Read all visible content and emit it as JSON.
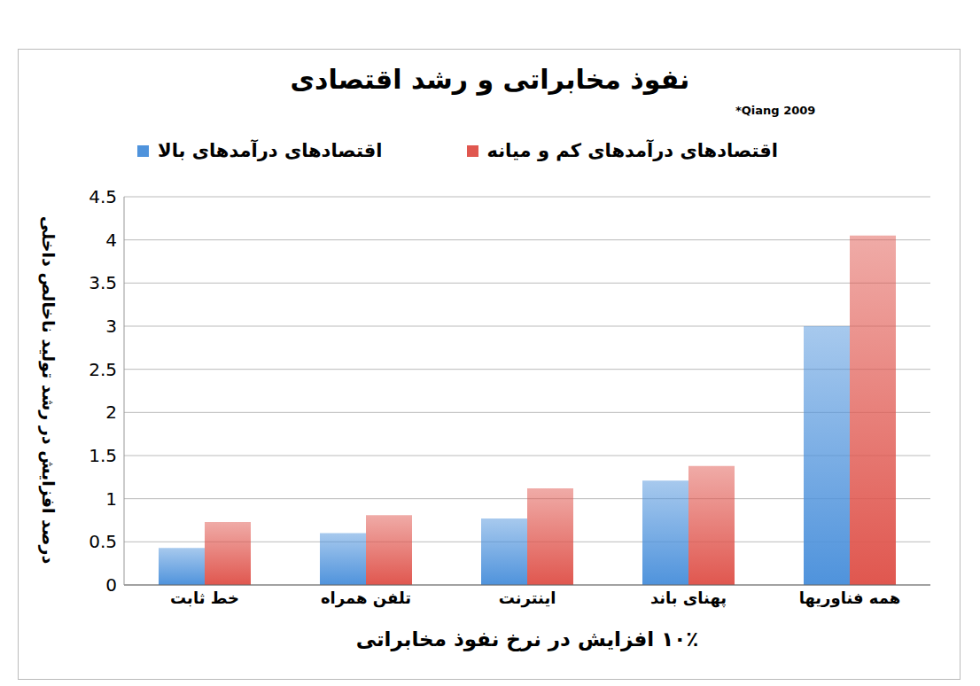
{
  "chart_data": {
    "type": "bar",
    "title": "نفوذ مخابراتی و رشد اقتصادی",
    "annotation": "*Qiang 2009",
    "x_label": "۱۰٪ افزایش در نرخ نفوذ مخابراتی",
    "y_label": "درصد افزایش در رشد تولید ناخالص داخلی",
    "categories": [
      "خط ثابت",
      "تلفن همراه",
      "اینترنت",
      "پهنای باند",
      "همه فناوریها"
    ],
    "series": [
      {
        "name": "اقتصادهای درآمدهای بالا",
        "color": "#4f93dc",
        "values": [
          0.43,
          0.6,
          0.77,
          1.21,
          3.0
        ]
      },
      {
        "name": "اقتصادهای درآمدهای کم و میانه",
        "color": "#e0574f",
        "values": [
          0.73,
          0.81,
          1.12,
          1.38,
          4.05
        ]
      }
    ],
    "ylim": [
      0,
      4.5
    ],
    "yticks": [
      0,
      0.5,
      1,
      1.5,
      2,
      2.5,
      3,
      3.5,
      4,
      4.5
    ],
    "grid": true,
    "legend": "top"
  }
}
